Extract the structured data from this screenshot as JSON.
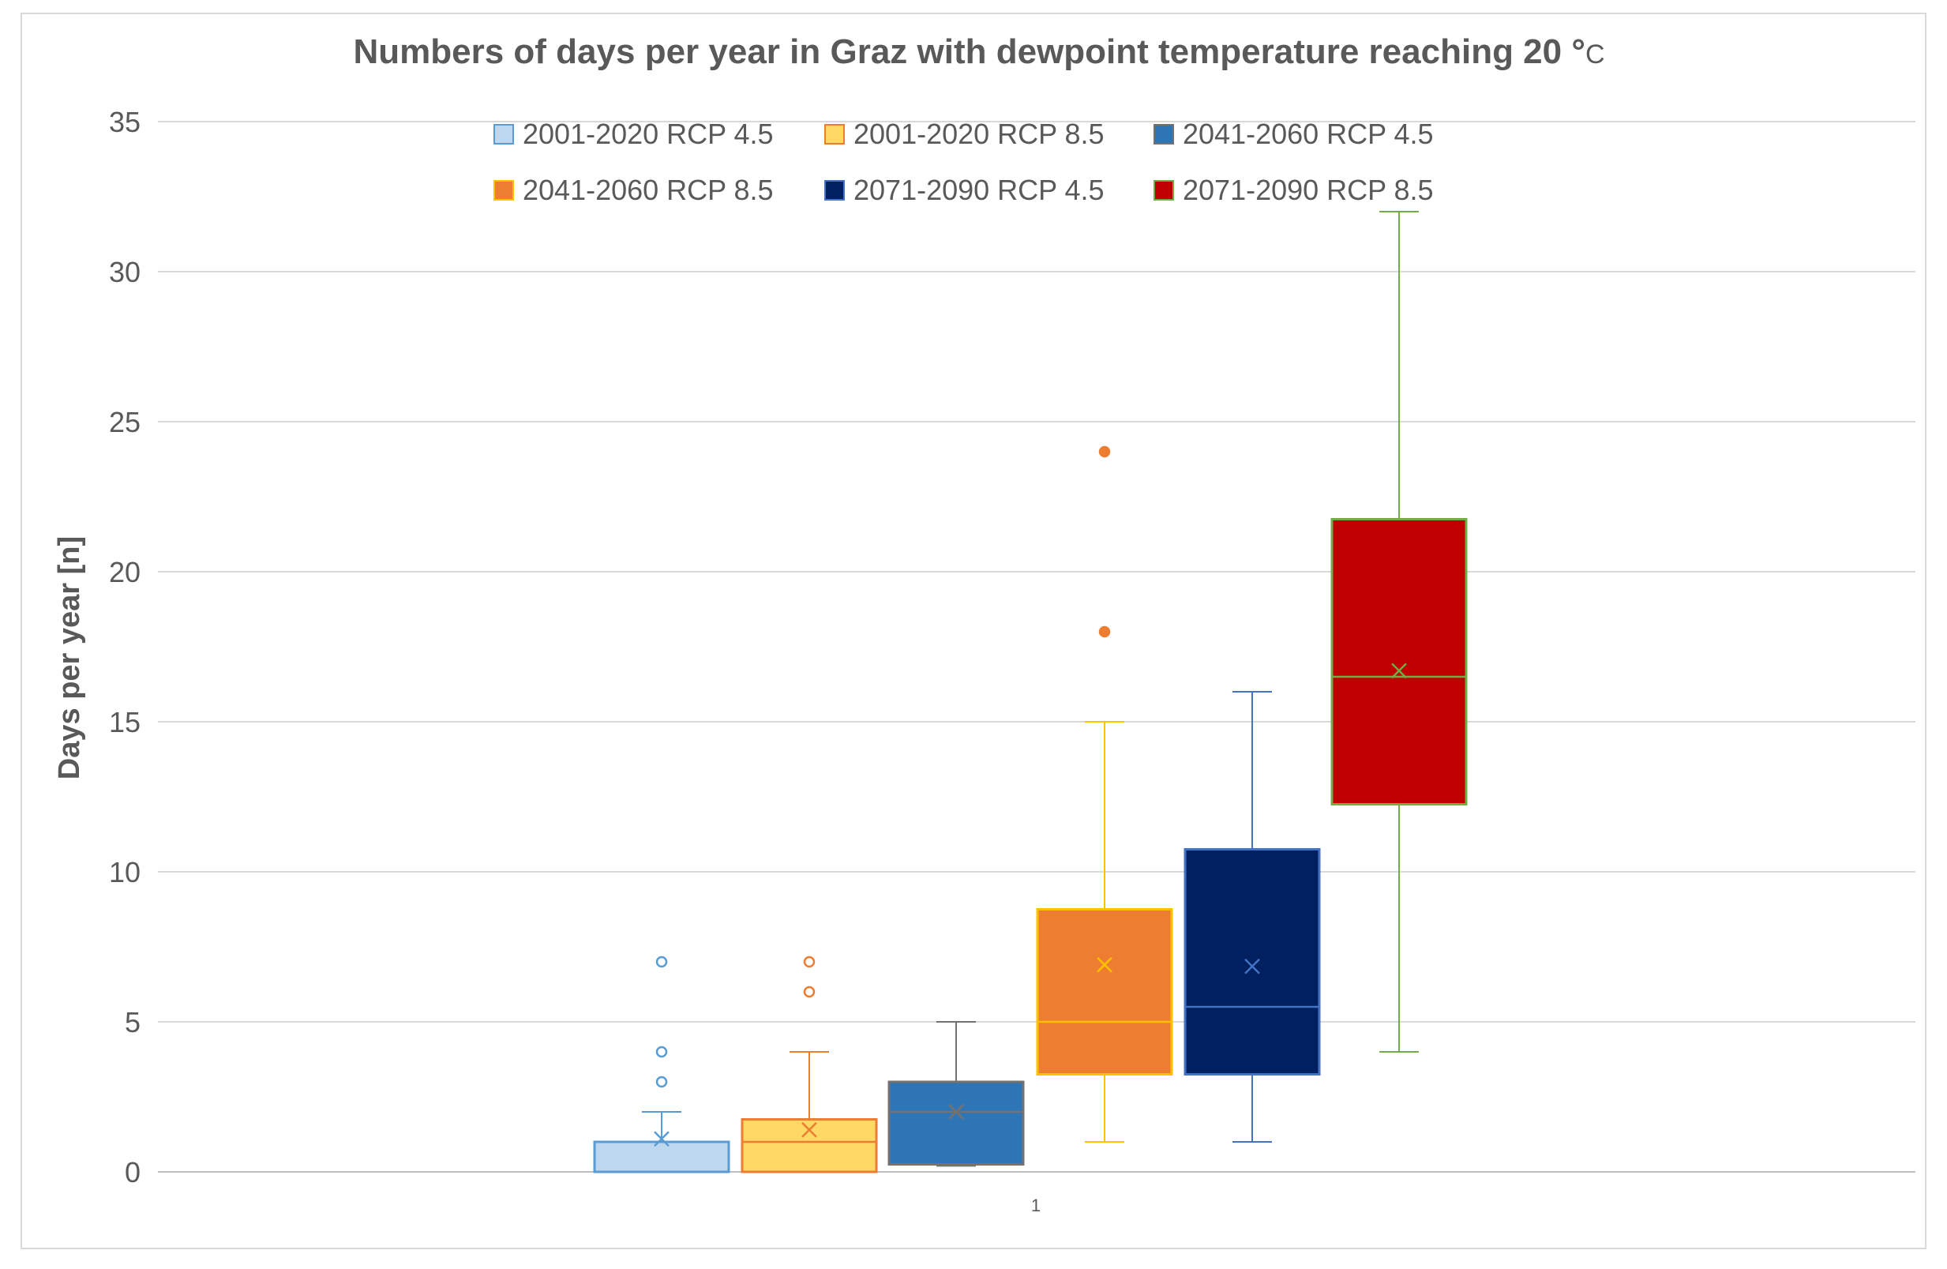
{
  "chart_data": {
    "type": "boxplot",
    "title": "Numbers of days per year in Graz with dewpoint temperature reaching 20 °",
    "title_unit": "C",
    "xlabel": "",
    "ylabel": "Days per year [n]",
    "categories": [
      "1"
    ],
    "ylim": [
      0,
      35
    ],
    "yticks": [
      0,
      5,
      10,
      15,
      20,
      25,
      30,
      35
    ],
    "grid": true,
    "legend_position": "top",
    "series": [
      {
        "name": "2001-2020 RCP 4.5",
        "fill": "#bdd7ee",
        "stroke": "#5b9bd5",
        "min": 0,
        "q1": 0,
        "median": 0,
        "q3": 1,
        "max": 2,
        "mean": 1.1,
        "outliers": [
          3,
          4,
          7
        ],
        "outlier_style": "hollow"
      },
      {
        "name": "2001-2020 RCP 8.5",
        "fill": "#ffd966",
        "stroke": "#ed7d31",
        "min": 0,
        "q1": 0,
        "median": 1,
        "q3": 1.75,
        "max": 4,
        "mean": 1.4,
        "outliers": [
          6,
          7
        ],
        "outlier_style": "hollow"
      },
      {
        "name": "2041-2060 RCP 4.5",
        "fill": "#2e75b6",
        "stroke": "#767171",
        "min": 0.2,
        "q1": 0.25,
        "median": 2,
        "q3": 3,
        "max": 5,
        "mean": 2.0,
        "outliers": [],
        "outlier_style": "hollow"
      },
      {
        "name": "2041-2060 RCP 8.5",
        "fill": "#ed7d31",
        "stroke": "#ffc000",
        "min": 1,
        "q1": 3.25,
        "median": 5,
        "q3": 8.75,
        "max": 15,
        "mean": 6.9,
        "outliers": [
          18,
          24
        ],
        "outlier_style": "solid"
      },
      {
        "name": "2071-2090 RCP 4.5",
        "fill": "#002060",
        "stroke": "#4472c4",
        "min": 1,
        "q1": 3.25,
        "median": 5.5,
        "q3": 10.75,
        "max": 16,
        "mean": 6.85,
        "outliers": [],
        "outlier_style": "hollow"
      },
      {
        "name": "2071-2090 RCP 8.5",
        "fill": "#c00000",
        "stroke": "#70ad47",
        "min": 4,
        "q1": 12.25,
        "median": 16.5,
        "q3": 21.75,
        "max": 32,
        "mean": 16.7,
        "outliers": [],
        "outlier_style": "hollow"
      }
    ]
  }
}
